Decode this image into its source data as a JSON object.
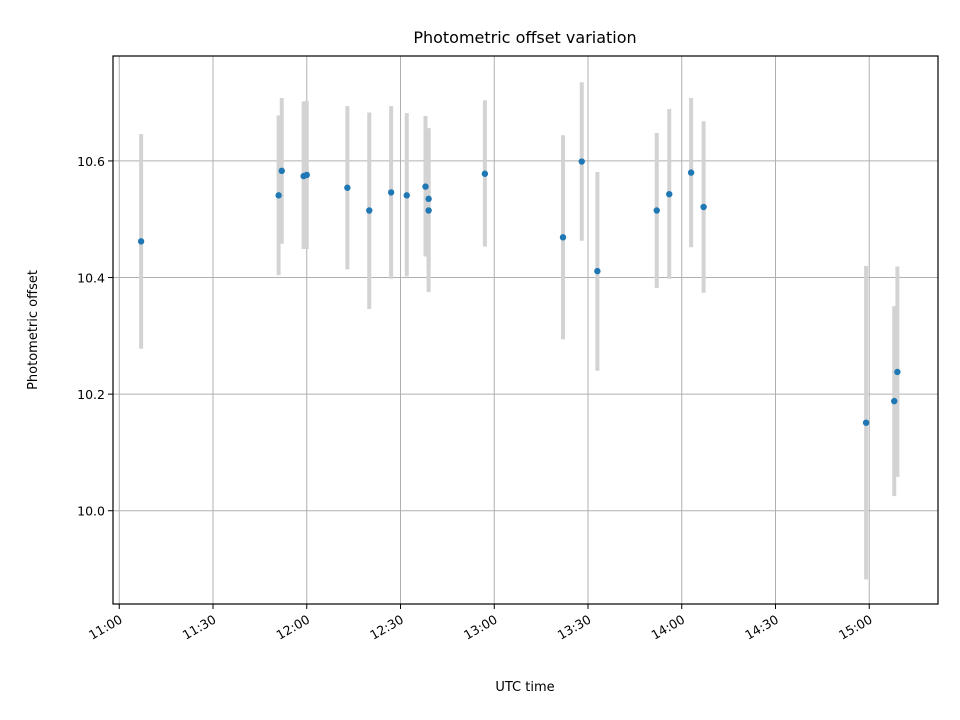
{
  "chart_data": {
    "type": "scatter",
    "title": "Photometric offset variation",
    "xlabel": "UTC time",
    "ylabel": "Photometric offset",
    "x_ticks": [
      "11:00",
      "11:30",
      "12:00",
      "12:30",
      "13:00",
      "13:30",
      "14:00",
      "14:30",
      "15:00"
    ],
    "y_ticks": [
      "10.0",
      "10.2",
      "10.4",
      "10.6"
    ],
    "xlim": [
      "10:58",
      "15:22"
    ],
    "ylim": [
      9.84,
      10.78
    ],
    "grid": true,
    "colors": {
      "point": "#1f77b4",
      "errorbar": "#d3d3d3",
      "grid": "#b0b0b0"
    },
    "points": [
      {
        "t": "11:07",
        "y": 10.462,
        "lo": 10.278,
        "hi": 10.646
      },
      {
        "t": "11:51",
        "y": 10.541,
        "lo": 10.404,
        "hi": 10.678
      },
      {
        "t": "11:52",
        "y": 10.583,
        "lo": 10.458,
        "hi": 10.708
      },
      {
        "t": "11:59",
        "y": 10.574,
        "lo": 10.449,
        "hi": 10.702
      },
      {
        "t": "11:60",
        "y": 10.576,
        "lo": 10.449,
        "hi": 10.703
      },
      {
        "t": "12:13",
        "y": 10.554,
        "lo": 10.414,
        "hi": 10.694
      },
      {
        "t": "12:20",
        "y": 10.515,
        "lo": 10.346,
        "hi": 10.683
      },
      {
        "t": "12:27",
        "y": 10.546,
        "lo": 10.398,
        "hi": 10.694
      },
      {
        "t": "12:32",
        "y": 10.541,
        "lo": 10.402,
        "hi": 10.682
      },
      {
        "t": "12:38",
        "y": 10.556,
        "lo": 10.436,
        "hi": 10.677
      },
      {
        "t": "12:39",
        "y": 10.535,
        "lo": 10.414,
        "hi": 10.656
      },
      {
        "t": "12:39",
        "y": 10.515,
        "lo": 10.375,
        "hi": 10.656
      },
      {
        "t": "12:57",
        "y": 10.578,
        "lo": 10.453,
        "hi": 10.704
      },
      {
        "t": "13:22",
        "y": 10.469,
        "lo": 10.294,
        "hi": 10.644
      },
      {
        "t": "13:28",
        "y": 10.599,
        "lo": 10.463,
        "hi": 10.735
      },
      {
        "t": "13:33",
        "y": 10.411,
        "lo": 10.24,
        "hi": 10.581
      },
      {
        "t": "13:52",
        "y": 10.515,
        "lo": 10.382,
        "hi": 10.648
      },
      {
        "t": "13:56",
        "y": 10.543,
        "lo": 10.398,
        "hi": 10.689
      },
      {
        "t": "14:03",
        "y": 10.58,
        "lo": 10.452,
        "hi": 10.708
      },
      {
        "t": "14:07",
        "y": 10.521,
        "lo": 10.374,
        "hi": 10.668
      },
      {
        "t": "14:59",
        "y": 10.151,
        "lo": 9.882,
        "hi": 10.42
      },
      {
        "t": "15:08",
        "y": 10.188,
        "lo": 10.025,
        "hi": 10.351
      },
      {
        "t": "15:09",
        "y": 10.238,
        "lo": 10.058,
        "hi": 10.419
      }
    ]
  }
}
